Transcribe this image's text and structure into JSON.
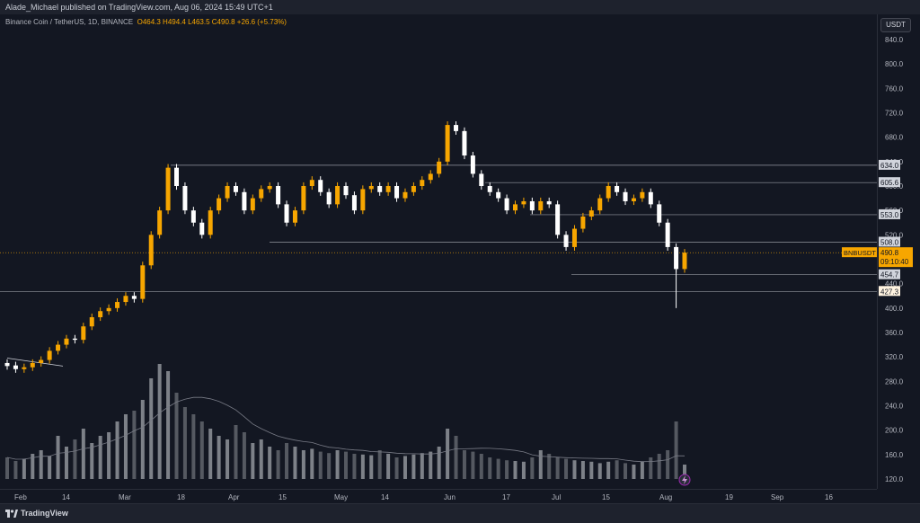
{
  "header": {
    "publish_line": "Alade_Michael published on TradingView.com, Aug 06, 2024 15:49 UTC+1"
  },
  "legend": {
    "symbol": "Binance Coin / TetherUS, 1D, BINANCE",
    "ohlc": "O464.3  H494.4  L463.5  C490.8  +26.6 (+5.73%)"
  },
  "price_scale": {
    "currency": "USDT",
    "ticks": [
      "840.0",
      "800.0",
      "760.0",
      "720.0",
      "680.0",
      "640.0",
      "600.0",
      "560.0",
      "520.0",
      "480.0",
      "440.0",
      "400.0",
      "360.0",
      "320.0",
      "280.0",
      "240.0",
      "200.0",
      "160.0",
      "120.0"
    ],
    "level_labels": [
      "634.0",
      "605.6",
      "553.0",
      "508.0",
      "454.7",
      "427.3"
    ],
    "symbol_tag": "BNBUSDT",
    "last_price": "490.8",
    "countdown": "09:10:40"
  },
  "time_scale": {
    "labels": [
      "Feb",
      "14",
      "Mar",
      "18",
      "Apr",
      "15",
      "May",
      "14",
      "Jun",
      "17",
      "Jul",
      "15",
      "Aug",
      "19",
      "Sep",
      "16"
    ]
  },
  "footer": {
    "brand": "TradingView"
  },
  "colors": {
    "up": "#f7a600",
    "down": "#ffffff",
    "background": "#131722"
  },
  "chart_data": {
    "type": "candlestick",
    "symbol": "BNBUSDT",
    "interval": "1D",
    "ylim": [
      120,
      840
    ],
    "horizontal_levels": [
      634.0,
      605.6,
      553.0,
      508.0,
      454.7,
      427.3
    ],
    "last": 490.8,
    "closes_approx": [
      [
        310,
        305
      ],
      [
        306,
        300
      ],
      [
        300,
        303
      ],
      [
        303,
        310
      ],
      [
        310,
        315
      ],
      [
        315,
        330
      ],
      [
        330,
        340
      ],
      [
        340,
        350
      ],
      [
        350,
        348
      ],
      [
        348,
        370
      ],
      [
        370,
        385
      ],
      [
        385,
        395
      ],
      [
        395,
        400
      ],
      [
        400,
        410
      ],
      [
        410,
        420
      ],
      [
        420,
        415
      ],
      [
        415,
        470
      ],
      [
        470,
        520
      ],
      [
        520,
        560
      ],
      [
        560,
        630
      ],
      [
        630,
        600
      ],
      [
        600,
        560
      ],
      [
        560,
        540
      ],
      [
        540,
        520
      ],
      [
        520,
        560
      ],
      [
        560,
        580
      ],
      [
        580,
        600
      ],
      [
        600,
        590
      ],
      [
        590,
        560
      ],
      [
        560,
        580
      ],
      [
        580,
        595
      ],
      [
        595,
        600
      ],
      [
        600,
        570
      ],
      [
        570,
        540
      ],
      [
        540,
        560
      ],
      [
        560,
        600
      ],
      [
        600,
        610
      ],
      [
        610,
        590
      ],
      [
        590,
        570
      ],
      [
        570,
        600
      ],
      [
        600,
        585
      ],
      [
        585,
        560
      ],
      [
        560,
        595
      ],
      [
        595,
        600
      ],
      [
        600,
        590
      ],
      [
        590,
        600
      ],
      [
        600,
        580
      ],
      [
        580,
        590
      ],
      [
        590,
        600
      ],
      [
        600,
        610
      ],
      [
        610,
        620
      ],
      [
        620,
        640
      ],
      [
        640,
        700
      ],
      [
        700,
        690
      ],
      [
        690,
        650
      ],
      [
        650,
        620
      ],
      [
        620,
        600
      ],
      [
        600,
        590
      ],
      [
        590,
        580
      ],
      [
        580,
        560
      ],
      [
        560,
        570
      ],
      [
        570,
        575
      ],
      [
        575,
        560
      ],
      [
        560,
        575
      ],
      [
        575,
        570
      ],
      [
        570,
        520
      ],
      [
        520,
        500
      ],
      [
        500,
        530
      ],
      [
        530,
        550
      ],
      [
        550,
        560
      ],
      [
        560,
        580
      ],
      [
        580,
        600
      ],
      [
        600,
        590
      ],
      [
        590,
        575
      ],
      [
        575,
        580
      ],
      [
        580,
        590
      ],
      [
        590,
        570
      ],
      [
        570,
        540
      ],
      [
        540,
        500
      ],
      [
        500,
        464
      ],
      [
        464,
        490.8
      ]
    ],
    "volume_approx": [
      30,
      25,
      28,
      35,
      40,
      32,
      60,
      45,
      55,
      70,
      50,
      60,
      65,
      80,
      90,
      95,
      110,
      140,
      160,
      150,
      120,
      100,
      90,
      80,
      70,
      60,
      55,
      75,
      65,
      50,
      55,
      45,
      40,
      50,
      45,
      40,
      42,
      38,
      36,
      40,
      38,
      35,
      34,
      33,
      40,
      35,
      30,
      32,
      34,
      36,
      38,
      45,
      70,
      60,
      40,
      38,
      35,
      30,
      28,
      26,
      25,
      24,
      30,
      40,
      35,
      30,
      28,
      26,
      25,
      24,
      22,
      24,
      26,
      22,
      20,
      24,
      30,
      35,
      40,
      80,
      20
    ]
  }
}
